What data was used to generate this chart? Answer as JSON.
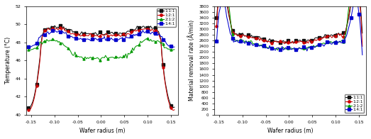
{
  "left": {
    "xlabel": "Wafer radius (m)",
    "ylabel": "Temperature (°C)",
    "xlim": [
      -0.16,
      0.165
    ],
    "ylim": [
      40,
      52
    ],
    "yticks": [
      40,
      42,
      44,
      46,
      48,
      50,
      52
    ],
    "xticks": [
      -0.15,
      -0.1,
      -0.05,
      0.0,
      0.05,
      0.1,
      0.15
    ],
    "legend_labels": [
      "1:1:1",
      "1:2:1",
      "2:1:2",
      "1:4:1"
    ],
    "legend_colors": [
      "#111111",
      "#cc0000",
      "#009900",
      "#0000cc"
    ]
  },
  "right": {
    "xlabel": "Wafer radius (m)",
    "ylabel": "Material removal rate (Å/min)",
    "xlim": [
      -0.16,
      0.165
    ],
    "ylim": [
      0,
      3800
    ],
    "yticks": [
      0,
      200,
      400,
      600,
      800,
      1000,
      1200,
      1400,
      1600,
      1800,
      2000,
      2200,
      2400,
      2600,
      2800,
      3000,
      3200,
      3400,
      3600,
      3800
    ],
    "xticks": [
      -0.15,
      -0.1,
      -0.05,
      0.0,
      0.05,
      0.1,
      0.15
    ],
    "legend_labels": [
      "1:1:1",
      "1:2:1",
      "2:1:2",
      "1:4:1"
    ],
    "legend_colors": [
      "#111111",
      "#cc0000",
      "#009900",
      "#0000cc"
    ]
  }
}
